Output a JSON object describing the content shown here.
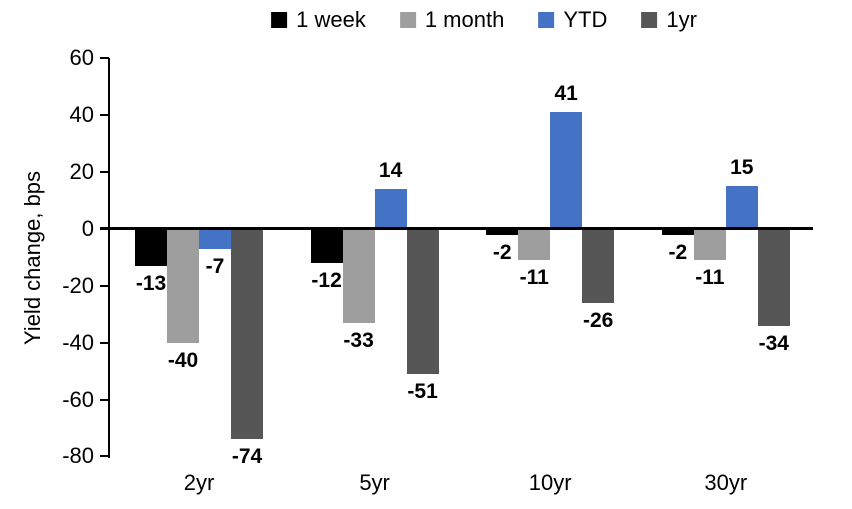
{
  "chart_data": {
    "type": "bar",
    "title": "",
    "ylabel": "Yield change, bps",
    "xlabel": "",
    "categories": [
      "2yr",
      "5yr",
      "10yr",
      "30yr"
    ],
    "series": [
      {
        "name": "1 week",
        "color": "#000000",
        "values": [
          -13,
          -12,
          -2,
          -2
        ]
      },
      {
        "name": "1 month",
        "color": "#9E9E9E",
        "values": [
          -40,
          -33,
          -11,
          -11
        ]
      },
      {
        "name": "YTD",
        "color": "#4472C4",
        "values": [
          -7,
          14,
          41,
          15
        ]
      },
      {
        "name": "1yr",
        "color": "#565656",
        "values": [
          -74,
          -51,
          -26,
          -34
        ]
      }
    ],
    "ylim": [
      -80,
      60
    ],
    "yticks": [
      60,
      40,
      20,
      0,
      -20,
      -40,
      -60,
      -80
    ],
    "grid": false,
    "legend_position": "top",
    "data_labels": true,
    "axis_color": "#000000",
    "background_color": "#ffffff"
  }
}
